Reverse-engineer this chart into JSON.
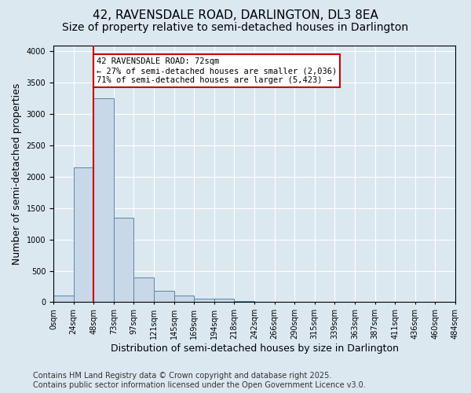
{
  "title_line1": "42, RAVENSDALE ROAD, DARLINGTON, DL3 8EA",
  "title_line2": "Size of property relative to semi-detached houses in Darlington",
  "xlabel": "Distribution of semi-detached houses by size in Darlington",
  "ylabel": "Number of semi-detached properties",
  "bin_labels": [
    "0sqm",
    "24sqm",
    "48sqm",
    "73sqm",
    "97sqm",
    "121sqm",
    "145sqm",
    "169sqm",
    "194sqm",
    "218sqm",
    "242sqm",
    "266sqm",
    "290sqm",
    "315sqm",
    "339sqm",
    "363sqm",
    "387sqm",
    "411sqm",
    "436sqm",
    "460sqm",
    "484sqm"
  ],
  "bar_heights": [
    100,
    2150,
    3250,
    1350,
    400,
    175,
    100,
    60,
    50,
    15,
    5,
    2,
    2,
    0,
    0,
    0,
    0,
    0,
    0,
    0
  ],
  "bar_color": "#c8d8e8",
  "bar_edge_color": "#5588aa",
  "property_bin_index": 2,
  "vline_color": "#cc0000",
  "annotation_text": "42 RAVENSDALE ROAD: 72sqm\n← 27% of semi-detached houses are smaller (2,036)\n71% of semi-detached houses are larger (5,423) →",
  "annotation_box_color": "#ffffff",
  "annotation_box_edge_color": "#cc0000",
  "ylim": [
    0,
    4100
  ],
  "yticks": [
    0,
    500,
    1000,
    1500,
    2000,
    2500,
    3000,
    3500,
    4000
  ],
  "footer_line1": "Contains HM Land Registry data © Crown copyright and database right 2025.",
  "footer_line2": "Contains public sector information licensed under the Open Government Licence v3.0.",
  "background_color": "#dce8f0",
  "plot_bg_color": "#dce8f0",
  "grid_color": "#ffffff",
  "title_fontsize": 11,
  "subtitle_fontsize": 10,
  "axis_label_fontsize": 9,
  "tick_fontsize": 7,
  "footer_fontsize": 7
}
